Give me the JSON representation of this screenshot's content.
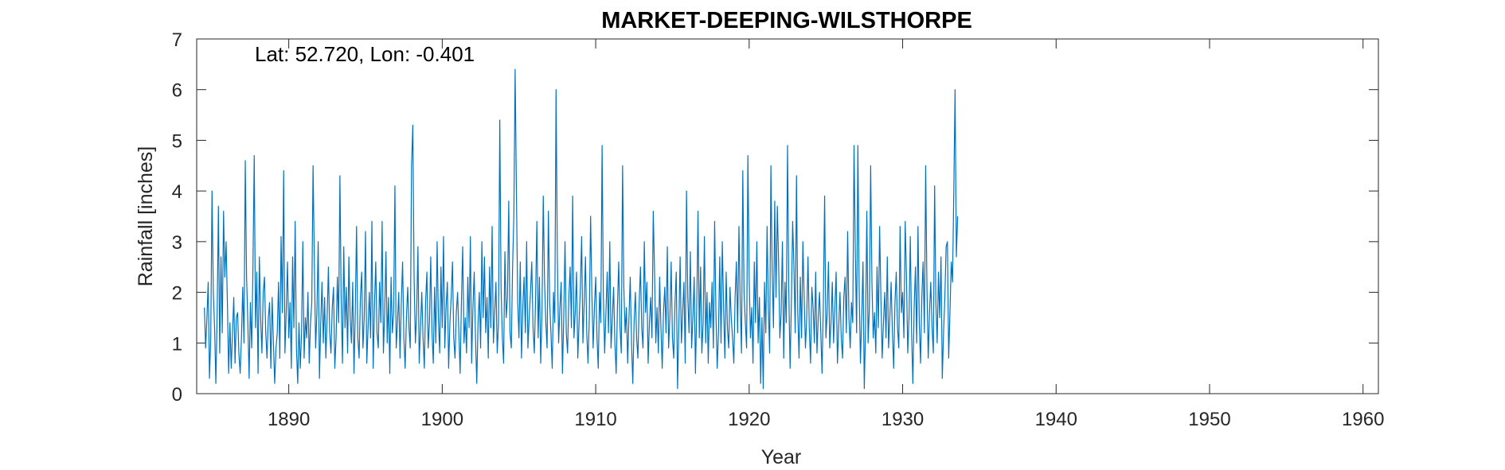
{
  "chart_data": {
    "type": "line",
    "title": "MARKET-DEEPING-WILSTHORPE",
    "annotation": "Lat: 52.720, Lon: -0.401",
    "xlabel": "Year",
    "ylabel": "Rainfall [inches]",
    "xlim": [
      1884,
      1961
    ],
    "ylim": [
      0,
      7
    ],
    "xticks": [
      1890,
      1900,
      1910,
      1920,
      1930,
      1940,
      1950,
      1960
    ],
    "yticks": [
      0,
      1,
      2,
      3,
      4,
      5,
      6,
      7
    ],
    "grid": false,
    "series": [
      {
        "color": "#0072BD",
        "x_start": 1884.5,
        "x_step": 0.0833333,
        "values": [
          1.7,
          0.9,
          1.5,
          2.2,
          0.3,
          1.1,
          4.0,
          2.0,
          1.3,
          0.2,
          1.6,
          3.7,
          0.8,
          2.7,
          1.2,
          3.6,
          2.3,
          3.0,
          1.8,
          0.4,
          1.4,
          0.5,
          1.2,
          1.9,
          0.6,
          1.5,
          1.6,
          0.8,
          0.4,
          1.1,
          2.1,
          1.0,
          4.6,
          2.3,
          1.4,
          0.3,
          1.8,
          0.9,
          2.5,
          4.7,
          1.3,
          2.4,
          0.4,
          2.7,
          1.5,
          0.8,
          2.0,
          2.3,
          1.2,
          0.7,
          1.5,
          1.8,
          0.5,
          1.9,
          1.0,
          0.2,
          0.9,
          1.2,
          2.2,
          0.7,
          3.1,
          1.6,
          4.4,
          0.8,
          1.6,
          2.6,
          1.1,
          1.8,
          0.5,
          2.7,
          1.3,
          3.4,
          0.9,
          0.2,
          1.4,
          0.5,
          1.2,
          3.0,
          0.7,
          1.5,
          1.1,
          2.0,
          0.6,
          1.4,
          1.8,
          4.5,
          2.6,
          0.9,
          1.6,
          3.0,
          0.3,
          1.4,
          2.2,
          1.0,
          1.9,
          0.7,
          1.5,
          2.5,
          1.2,
          0.8,
          1.7,
          2.1,
          0.5,
          1.1,
          2.3,
          1.4,
          4.3,
          1.8,
          0.6,
          2.9,
          1.3,
          2.1,
          0.8,
          2.7,
          1.5,
          1.0,
          2.2,
          0.4,
          1.6,
          3.3,
          1.1,
          0.7,
          1.9,
          2.4,
          0.9,
          1.5,
          3.2,
          0.6,
          1.3,
          2.0,
          1.1,
          3.4,
          0.5,
          1.7,
          2.6,
          1.2,
          0.9,
          2.2,
          1.4,
          3.4,
          0.8,
          1.6,
          2.8,
          1.0,
          1.9,
          0.4,
          2.3,
          1.2,
          1.6,
          4.1,
          0.9,
          1.4,
          2.0,
          0.7,
          1.8,
          2.6,
          1.1,
          0.5,
          1.5,
          2.1,
          1.3,
          0.9,
          4.5,
          5.3,
          2.3,
          1.0,
          1.6,
          2.9,
          0.6,
          1.3,
          2.0,
          1.1,
          0.5,
          1.8,
          2.4,
          0.9,
          1.4,
          2.7,
          1.2,
          0.6,
          2.1,
          1.0,
          3.0,
          1.5,
          0.8,
          2.5,
          1.3,
          3.1,
          0.9,
          1.7,
          2.2,
          0.5,
          1.4,
          1.9,
          2.6,
          1.1,
          0.7,
          1.6,
          2.0,
          1.2,
          0.4,
          1.8,
          2.9,
          1.0,
          1.5,
          0.8,
          2.3,
          1.3,
          3.1,
          0.6,
          1.7,
          2.4,
          1.1,
          0.2,
          1.4,
          2.0,
          0.9,
          3.0,
          1.5,
          2.7,
          1.2,
          1.9,
          0.7,
          2.5,
          1.3,
          3.3,
          1.0,
          1.6,
          2.2,
          0.8,
          1.4,
          5.4,
          2.1,
          1.1,
          0.6,
          2.8,
          1.5,
          1.9,
          3.8,
          1.2,
          0.9,
          2.5,
          3.5,
          6.4,
          4.0,
          1.8,
          1.1,
          2.6,
          0.7,
          1.7,
          2.3,
          1.2,
          3.0,
          0.9,
          1.5,
          2.0,
          2.6,
          1.3,
          0.8,
          1.9,
          3.4,
          1.1,
          2.3,
          0.6,
          1.6,
          3.9,
          2.2,
          1.4,
          0.9,
          3.6,
          1.8,
          1.2,
          0.5,
          2.0,
          1.4,
          6.0,
          2.7,
          1.0,
          1.7,
          2.2,
          0.4,
          1.5,
          3.0,
          1.2,
          0.8,
          1.9,
          2.5,
          1.3,
          3.9,
          1.1,
          1.6,
          2.4,
          0.7,
          1.4,
          2.1,
          3.1,
          1.0,
          1.8,
          2.7,
          1.2,
          0.6,
          1.5,
          3.5,
          2.0,
          0.9,
          1.7,
          2.3,
          1.1,
          0.5,
          2.0,
          1.4,
          4.9,
          1.9,
          0.8,
          1.6,
          2.4,
          1.2,
          3.0,
          0.9,
          1.5,
          2.1,
          1.0,
          0.4,
          1.7,
          2.6,
          1.3,
          0.8,
          4.5,
          2.1,
          1.2,
          1.7,
          0.6,
          1.5,
          2.3,
          1.0,
          0.2,
          1.4,
          2.0,
          1.1,
          0.7,
          1.8,
          2.5,
          1.3,
          0.9,
          3.0,
          1.6,
          2.2,
          0.6,
          1.4,
          1.9,
          1.1,
          3.6,
          2.4,
          1.0,
          1.7,
          0.8,
          2.3,
          1.3,
          0.5,
          1.6,
          2.1,
          1.2,
          2.9,
          0.9,
          1.5,
          2.6,
          1.1,
          0.7,
          1.8,
          2.4,
          0.1,
          1.3,
          2.7,
          1.0,
          1.6,
          2.2,
          0.6,
          4.0,
          1.9,
          1.2,
          2.8,
          0.9,
          1.5,
          2.3,
          0.4,
          1.7,
          3.6,
          1.1,
          2.5,
          0.8,
          1.4,
          3.1,
          1.0,
          2.0,
          0.6,
          1.8,
          1.3,
          2.2,
          0.9,
          3.4,
          1.6,
          0.5,
          1.2,
          2.7,
          1.0,
          3.0,
          1.7,
          0.7,
          2.4,
          1.3,
          0.9,
          2.1,
          1.5,
          1.1,
          0.6,
          1.9,
          2.6,
          1.2,
          3.3,
          1.8,
          0.8,
          4.4,
          2.0,
          1.4,
          0.9,
          4.7,
          2.3,
          1.1,
          1.7,
          0.6,
          2.6,
          1.4,
          3.0,
          1.0,
          1.9,
          0.2,
          1.5,
          0.1,
          2.2,
          1.2,
          3.3,
          1.7,
          0.8,
          4.5,
          2.4,
          1.3,
          3.8,
          1.9,
          3.7,
          2.6,
          1.1,
          1.6,
          3.0,
          0.7,
          2.2,
          1.4,
          4.9,
          2.0,
          0.5,
          1.8,
          3.4,
          2.5,
          1.2,
          4.3,
          1.6,
          0.7,
          2.3,
          1.1,
          3.0,
          1.9,
          0.9,
          1.5,
          2.7,
          1.3,
          0.6,
          2.1,
          1.7,
          1.0,
          2.4,
          0.8,
          1.5,
          2.0,
          1.2,
          0.4,
          1.8,
          3.9,
          1.1,
          1.6,
          2.6,
          0.9,
          1.4,
          2.2,
          1.0,
          1.7,
          2.4,
          0.6,
          1.3,
          2.0,
          1.1,
          0.7,
          1.9,
          2.3,
          1.2,
          3.2,
          1.5,
          0.9,
          1.8,
          1.4,
          4.9,
          2.8,
          1.2,
          4.9,
          2.1,
          0.6,
          1.5,
          2.6,
          0.1,
          1.3,
          3.6,
          1.0,
          1.7,
          4.5,
          2.2,
          1.1,
          1.6,
          0.8,
          2.5,
          1.3,
          3.3,
          1.9,
          0.7,
          1.4,
          2.0,
          1.1,
          2.7,
          0.9,
          1.5,
          2.2,
          1.2,
          0.5,
          1.8,
          2.4,
          1.3,
          0.9,
          3.3,
          1.6,
          2.0,
          1.1,
          3.4,
          2.3,
          0.8,
          1.5,
          3.1,
          1.2,
          0.2,
          1.7,
          2.5,
          1.0,
          3.3,
          1.4,
          0.6,
          1.9,
          2.6,
          1.2,
          4.5,
          2.1,
          0.7,
          1.6,
          2.2,
          1.3,
          0.8,
          4.1,
          1.8,
          1.0,
          2.4,
          1.5,
          2.7,
          0.3,
          1.2,
          1.9,
          2.9,
          3.0,
          0.7,
          1.6,
          2.6,
          2.2,
          4.0,
          6.0,
          2.7,
          3.5
        ]
      }
    ]
  }
}
